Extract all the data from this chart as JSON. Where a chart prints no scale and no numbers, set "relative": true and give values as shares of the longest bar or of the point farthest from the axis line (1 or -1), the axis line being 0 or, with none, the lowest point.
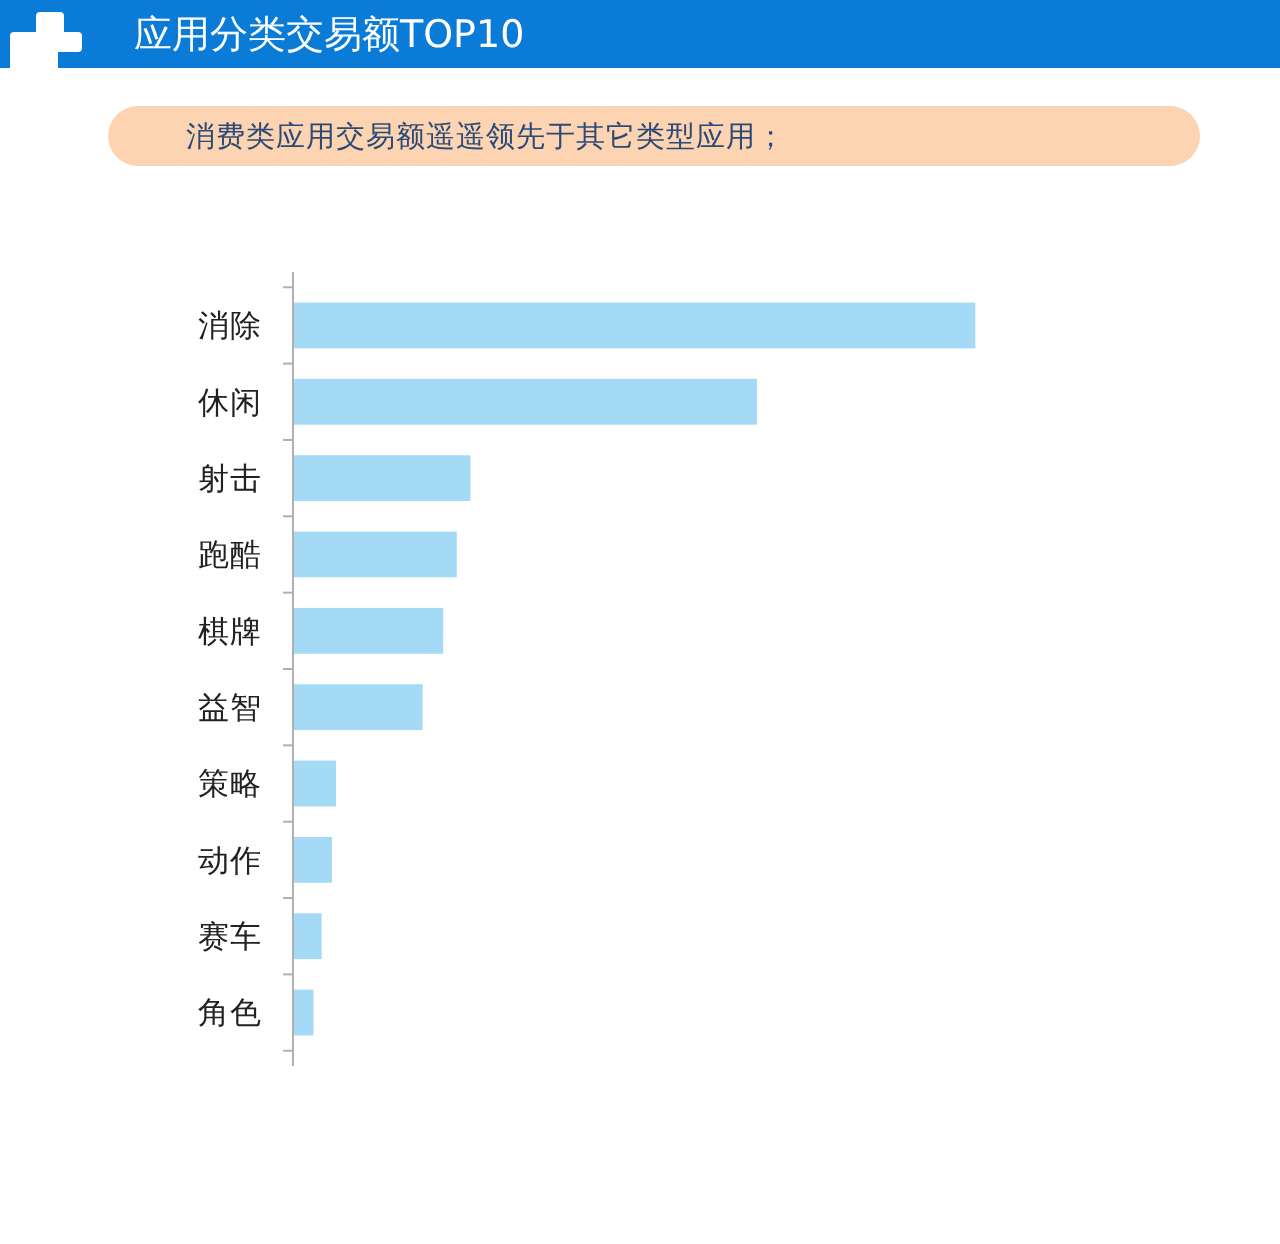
{
  "chart_data": {
    "type": "bar",
    "orientation": "horizontal",
    "relative": true,
    "title": "应用分类交易额TOP10",
    "subtitle": "消费类应用交易额遥遥领先于其它类型应用；",
    "categories": [
      "消除",
      "休闲",
      "射击",
      "跑酷",
      "棋牌",
      "益智",
      "策略",
      "动作",
      "赛车",
      "角色"
    ],
    "values": [
      1,
      0.68,
      0.26,
      0.24,
      0.22,
      0.19,
      0.063,
      0.057,
      0.042,
      0.03
    ],
    "color": "#a4daf5"
  }
}
